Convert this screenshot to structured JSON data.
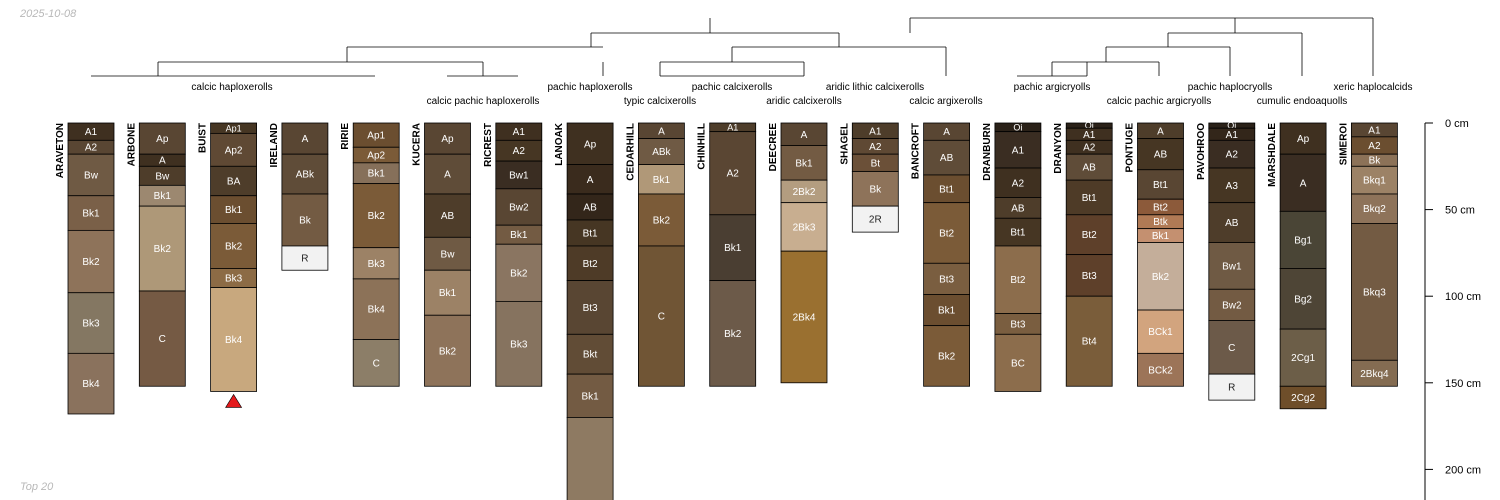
{
  "corner_texts": {
    "date": "2025-10-08",
    "caption": "Top 20"
  },
  "colors": {
    "line": "#000000",
    "marker": "#e41a1c",
    "label_text": "#ffffff",
    "dark_label_text": "#222222"
  },
  "depth_axis": {
    "ticks": [
      0,
      50,
      100,
      150,
      200
    ],
    "unit": "cm"
  },
  "dendrogram_labels": [
    "calcic haploxerolls",
    "calcic pachic haploxerolls",
    "pachic haploxerolls",
    "typic calcixerolls",
    "pachic calcixerolls",
    "aridic calcixerolls",
    "aridic lithic calcixerolls",
    "calcic argixerolls",
    "pachic argicryolls",
    "calcic pachic argicryolls",
    "pachic haplocryolls",
    "cumulic endoaquolls",
    "xeric haplocalcids"
  ],
  "profiles": [
    {
      "name": "ARAVETON",
      "horizons": [
        {
          "name": "A1",
          "top": 0,
          "bottom": 10,
          "color": "#3f3020"
        },
        {
          "name": "A2",
          "top": 10,
          "bottom": 18,
          "color": "#594633"
        },
        {
          "name": "Bw",
          "top": 18,
          "bottom": 42,
          "color": "#6f5a44"
        },
        {
          "name": "Bk1",
          "top": 42,
          "bottom": 62,
          "color": "#7a6048"
        },
        {
          "name": "Bk2",
          "top": 62,
          "bottom": 98,
          "color": "#8e735a"
        },
        {
          "name": "Bk3",
          "top": 98,
          "bottom": 133,
          "color": "#847762"
        },
        {
          "name": "Bk4",
          "top": 133,
          "bottom": 168,
          "color": "#8a725d"
        }
      ]
    },
    {
      "name": "ARBONE",
      "horizons": [
        {
          "name": "Ap",
          "top": 0,
          "bottom": 18,
          "color": "#594633"
        },
        {
          "name": "A",
          "top": 18,
          "bottom": 25,
          "color": "#3f3020"
        },
        {
          "name": "Bw",
          "top": 25,
          "bottom": 36,
          "color": "#4e3d2a"
        },
        {
          "name": "Bk1",
          "top": 36,
          "bottom": 48,
          "color": "#9c8870"
        },
        {
          "name": "Bk2",
          "top": 48,
          "bottom": 97,
          "color": "#ae9878"
        },
        {
          "name": "C",
          "top": 97,
          "bottom": 152,
          "color": "#755a44"
        }
      ]
    },
    {
      "name": "BUIST",
      "marker": true,
      "horizons": [
        {
          "name": "Ap1",
          "top": 0,
          "bottom": 6,
          "color": "#463623"
        },
        {
          "name": "Ap2",
          "top": 6,
          "bottom": 25,
          "color": "#5f4934"
        },
        {
          "name": "BA",
          "top": 25,
          "bottom": 42,
          "color": "#4e3d2a"
        },
        {
          "name": "Bk1",
          "top": 42,
          "bottom": 58,
          "color": "#6b4e30"
        },
        {
          "name": "Bk2",
          "top": 58,
          "bottom": 84,
          "color": "#7b5b38"
        },
        {
          "name": "Bk3",
          "top": 84,
          "bottom": 95,
          "color": "#8c6b45"
        },
        {
          "name": "Bk4",
          "top": 95,
          "bottom": 155,
          "color": "#c8a87e"
        }
      ]
    },
    {
      "name": "IRELAND",
      "horizons": [
        {
          "name": "A",
          "top": 0,
          "bottom": 18,
          "color": "#594633"
        },
        {
          "name": "ABk",
          "top": 18,
          "bottom": 41,
          "color": "#5f4c38"
        },
        {
          "name": "Bk",
          "top": 41,
          "bottom": 71,
          "color": "#735b43"
        },
        {
          "name": "R",
          "top": 71,
          "bottom": 85,
          "color": "#f2f2f2"
        }
      ]
    },
    {
      "name": "RIRIE",
      "horizons": [
        {
          "name": "Ap1",
          "top": 0,
          "bottom": 14,
          "color": "#6b4e30"
        },
        {
          "name": "Ap2",
          "top": 14,
          "bottom": 23,
          "color": "#7b5b38"
        },
        {
          "name": "Bk1",
          "top": 23,
          "bottom": 35,
          "color": "#86705a"
        },
        {
          "name": "Bk2",
          "top": 35,
          "bottom": 72,
          "color": "#7b5b38"
        },
        {
          "name": "Bk3",
          "top": 72,
          "bottom": 90,
          "color": "#9c8266"
        },
        {
          "name": "Bk4",
          "top": 90,
          "bottom": 125,
          "color": "#8c7258"
        },
        {
          "name": "C",
          "top": 125,
          "bottom": 152,
          "color": "#8c7e68"
        }
      ]
    },
    {
      "name": "KUCERA",
      "horizons": [
        {
          "name": "Ap",
          "top": 0,
          "bottom": 18,
          "color": "#594633"
        },
        {
          "name": "A",
          "top": 18,
          "bottom": 41,
          "color": "#5f4c38"
        },
        {
          "name": "AB",
          "top": 41,
          "bottom": 66,
          "color": "#4e3d2a"
        },
        {
          "name": "Bw",
          "top": 66,
          "bottom": 85,
          "color": "#6f5a44"
        },
        {
          "name": "Bk1",
          "top": 85,
          "bottom": 111,
          "color": "#9c8266"
        },
        {
          "name": "Bk2",
          "top": 111,
          "bottom": 152,
          "color": "#8e735a"
        }
      ]
    },
    {
      "name": "RICREST",
      "horizons": [
        {
          "name": "A1",
          "top": 0,
          "bottom": 10,
          "color": "#3f3020"
        },
        {
          "name": "A2",
          "top": 10,
          "bottom": 22,
          "color": "#463623"
        },
        {
          "name": "Bw1",
          "top": 22,
          "bottom": 38,
          "color": "#3a2d22"
        },
        {
          "name": "Bw2",
          "top": 38,
          "bottom": 59,
          "color": "#594633"
        },
        {
          "name": "Bk1",
          "top": 59,
          "bottom": 70,
          "color": "#735b43"
        },
        {
          "name": "Bk2",
          "top": 70,
          "bottom": 103,
          "color": "#8a7561"
        },
        {
          "name": "Bk3",
          "top": 103,
          "bottom": 152,
          "color": "#86735f"
        }
      ]
    },
    {
      "name": "LANOAK",
      "horizons": [
        {
          "name": "Ap",
          "top": 0,
          "bottom": 24,
          "color": "#3f3020"
        },
        {
          "name": "A",
          "top": 24,
          "bottom": 41,
          "color": "#3a2b1d"
        },
        {
          "name": "AB",
          "top": 41,
          "bottom": 56,
          "color": "#33261a"
        },
        {
          "name": "Bt1",
          "top": 56,
          "bottom": 71,
          "color": "#463623"
        },
        {
          "name": "Bt2",
          "top": 71,
          "bottom": 91,
          "color": "#4e3b27"
        },
        {
          "name": "Bt3",
          "top": 91,
          "bottom": 122,
          "color": "#594633"
        },
        {
          "name": "Bkt",
          "top": 122,
          "bottom": 145,
          "color": "#614c36"
        },
        {
          "name": "Bk1",
          "top": 145,
          "bottom": 170,
          "color": "#735b43"
        },
        {
          "name": "",
          "top": 170,
          "bottom": 220,
          "color": "#8e7a62"
        }
      ]
    },
    {
      "name": "CEDARHILL",
      "horizons": [
        {
          "name": "A",
          "top": 0,
          "bottom": 9,
          "color": "#594633"
        },
        {
          "name": "ABk",
          "top": 9,
          "bottom": 24,
          "color": "#6f5a44"
        },
        {
          "name": "Bk1",
          "top": 24,
          "bottom": 41,
          "color": "#b09878"
        },
        {
          "name": "Bk2",
          "top": 41,
          "bottom": 71,
          "color": "#7b5b38"
        },
        {
          "name": "C",
          "top": 71,
          "bottom": 152,
          "color": "#705535"
        }
      ]
    },
    {
      "name": "CHINHILL",
      "horizons": [
        {
          "name": "A1",
          "top": 0,
          "bottom": 5,
          "color": "#4e3d2a"
        },
        {
          "name": "A2",
          "top": 5,
          "bottom": 53,
          "color": "#5a4633"
        },
        {
          "name": "Bk1",
          "top": 53,
          "bottom": 91,
          "color": "#4a3e32"
        },
        {
          "name": "Bk2",
          "top": 91,
          "bottom": 152,
          "color": "#6c5a49"
        }
      ]
    },
    {
      "name": "DEECREE",
      "horizons": [
        {
          "name": "A",
          "top": 0,
          "bottom": 13,
          "color": "#594633"
        },
        {
          "name": "Bk1",
          "top": 13,
          "bottom": 33,
          "color": "#735b43"
        },
        {
          "name": "2Bk2",
          "top": 33,
          "bottom": 46,
          "color": "#b39d80"
        },
        {
          "name": "2Bk3",
          "top": 46,
          "bottom": 74,
          "color": "#c8ae90"
        },
        {
          "name": "2Bk4",
          "top": 74,
          "bottom": 150,
          "color": "#9a7030"
        }
      ]
    },
    {
      "name": "SHAGEL",
      "horizons": [
        {
          "name": "A1",
          "top": 0,
          "bottom": 9,
          "color": "#4e3d2a"
        },
        {
          "name": "A2",
          "top": 9,
          "bottom": 18,
          "color": "#5f4934"
        },
        {
          "name": "Bt",
          "top": 18,
          "bottom": 28,
          "color": "#6b5038"
        },
        {
          "name": "Bk",
          "top": 28,
          "bottom": 48,
          "color": "#8e735a"
        },
        {
          "name": "2R",
          "top": 48,
          "bottom": 63,
          "color": "#f2f2f2"
        }
      ]
    },
    {
      "name": "BANCROFT",
      "horizons": [
        {
          "name": "A",
          "top": 0,
          "bottom": 10,
          "color": "#594633"
        },
        {
          "name": "AB",
          "top": 10,
          "bottom": 30,
          "color": "#5f4c38"
        },
        {
          "name": "Bt1",
          "top": 30,
          "bottom": 46,
          "color": "#6b4e30"
        },
        {
          "name": "Bt2",
          "top": 46,
          "bottom": 81,
          "color": "#7b5b38"
        },
        {
          "name": "Bt3",
          "top": 81,
          "bottom": 99,
          "color": "#7a5e40"
        },
        {
          "name": "Bk1",
          "top": 99,
          "bottom": 117,
          "color": "#6b4e30"
        },
        {
          "name": "Bk2",
          "top": 117,
          "bottom": 152,
          "color": "#7b5b38"
        }
      ]
    },
    {
      "name": "DRANBURN",
      "horizons": [
        {
          "name": "Oi",
          "top": 0,
          "bottom": 5,
          "color": "#2a2118"
        },
        {
          "name": "A1",
          "top": 5,
          "bottom": 26,
          "color": "#3a2d22"
        },
        {
          "name": "A2",
          "top": 26,
          "bottom": 43,
          "color": "#3f3020"
        },
        {
          "name": "AB",
          "top": 43,
          "bottom": 55,
          "color": "#4e3d2a"
        },
        {
          "name": "Bt1",
          "top": 55,
          "bottom": 71,
          "color": "#463623"
        },
        {
          "name": "Bt2",
          "top": 71,
          "bottom": 110,
          "color": "#8c6d4c"
        },
        {
          "name": "Bt3",
          "top": 110,
          "bottom": 122,
          "color": "#7a5e40"
        },
        {
          "name": "BC",
          "top": 122,
          "bottom": 155,
          "color": "#8c6d4c"
        }
      ]
    },
    {
      "name": "DRANYON",
      "horizons": [
        {
          "name": "Oi",
          "top": 0,
          "bottom": 3,
          "color": "#2a2118"
        },
        {
          "name": "A1",
          "top": 3,
          "bottom": 10,
          "color": "#3f3020"
        },
        {
          "name": "A2",
          "top": 10,
          "bottom": 18,
          "color": "#3f3020"
        },
        {
          "name": "AB",
          "top": 18,
          "bottom": 33,
          "color": "#5f4c38"
        },
        {
          "name": "Bt1",
          "top": 33,
          "bottom": 53,
          "color": "#4e3b27"
        },
        {
          "name": "Bt2",
          "top": 53,
          "bottom": 76,
          "color": "#5e402a"
        },
        {
          "name": "Bt3",
          "top": 76,
          "bottom": 100,
          "color": "#5e402a"
        },
        {
          "name": "Bt4",
          "top": 100,
          "bottom": 152,
          "color": "#7a5d3a"
        }
      ]
    },
    {
      "name": "PONTUGE",
      "horizons": [
        {
          "name": "A",
          "top": 0,
          "bottom": 9,
          "color": "#4e3d2a"
        },
        {
          "name": "AB",
          "top": 9,
          "bottom": 27,
          "color": "#463623"
        },
        {
          "name": "Bt1",
          "top": 27,
          "bottom": 44,
          "color": "#594633"
        },
        {
          "name": "Bt2",
          "top": 44,
          "bottom": 53,
          "color": "#8c5a3a"
        },
        {
          "name": "Btk",
          "top": 53,
          "bottom": 61,
          "color": "#b07a55"
        },
        {
          "name": "Bk1",
          "top": 61,
          "bottom": 69,
          "color": "#c49070"
        },
        {
          "name": "Bk2",
          "top": 69,
          "bottom": 108,
          "color": "#c4ae9a"
        },
        {
          "name": "BCk1",
          "top": 108,
          "bottom": 133,
          "color": "#d2a47e"
        },
        {
          "name": "BCk2",
          "top": 133,
          "bottom": 152,
          "color": "#9c7458"
        }
      ]
    },
    {
      "name": "PAVOHROO",
      "horizons": [
        {
          "name": "Oi",
          "top": 0,
          "bottom": 3,
          "color": "#2a2118"
        },
        {
          "name": "A1",
          "top": 3,
          "bottom": 10,
          "color": "#33261a"
        },
        {
          "name": "A2",
          "top": 10,
          "bottom": 26,
          "color": "#3a2d22"
        },
        {
          "name": "A3",
          "top": 26,
          "bottom": 46,
          "color": "#463623"
        },
        {
          "name": "AB",
          "top": 46,
          "bottom": 69,
          "color": "#4e3d2a"
        },
        {
          "name": "Bw1",
          "top": 69,
          "bottom": 96,
          "color": "#6f5a44"
        },
        {
          "name": "Bw2",
          "top": 96,
          "bottom": 114,
          "color": "#735b43"
        },
        {
          "name": "C",
          "top": 114,
          "bottom": 145,
          "color": "#6c5a49"
        },
        {
          "name": "R",
          "top": 145,
          "bottom": 160,
          "color": "#f2f2f2"
        }
      ]
    },
    {
      "name": "MARSHDALE",
      "horizons": [
        {
          "name": "Ap",
          "top": 0,
          "bottom": 18,
          "color": "#3f3020"
        },
        {
          "name": "A",
          "top": 18,
          "bottom": 51,
          "color": "#3a2d22"
        },
        {
          "name": "Bg1",
          "top": 51,
          "bottom": 84,
          "color": "#4a4536"
        },
        {
          "name": "Bg2",
          "top": 84,
          "bottom": 119,
          "color": "#4e4536"
        },
        {
          "name": "2Cg1",
          "top": 119,
          "bottom": 152,
          "color": "#6c5e48"
        },
        {
          "name": "2Cg2",
          "top": 152,
          "bottom": 165,
          "color": "#6e4e2a"
        }
      ]
    },
    {
      "name": "SIMEROI",
      "horizons": [
        {
          "name": "A1",
          "top": 0,
          "bottom": 8,
          "color": "#594633"
        },
        {
          "name": "A2",
          "top": 8,
          "bottom": 18,
          "color": "#6b4e30"
        },
        {
          "name": "Bk",
          "top": 18,
          "bottom": 25,
          "color": "#8c7258"
        },
        {
          "name": "Bkq1",
          "top": 25,
          "bottom": 41,
          "color": "#9c8266"
        },
        {
          "name": "Bkq2",
          "top": 41,
          "bottom": 58,
          "color": "#8e735a"
        },
        {
          "name": "Bkq3",
          "top": 58,
          "bottom": 137,
          "color": "#735b43"
        },
        {
          "name": "2Bkq4",
          "top": 137,
          "bottom": 152,
          "color": "#846c52"
        }
      ]
    }
  ]
}
